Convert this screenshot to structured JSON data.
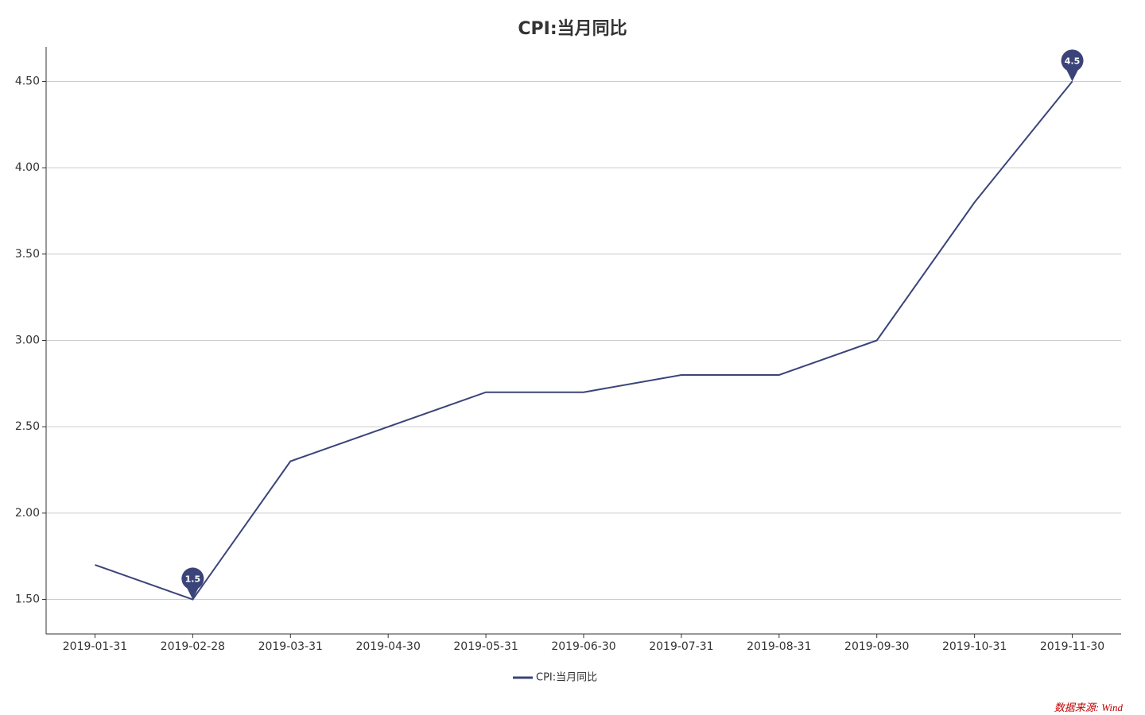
{
  "chart_data": {
    "type": "line",
    "title": "CPI:当月同比",
    "categories": [
      "2019-01-31",
      "2019-02-28",
      "2019-03-31",
      "2019-04-30",
      "2019-05-31",
      "2019-06-30",
      "2019-07-31",
      "2019-08-31",
      "2019-09-30",
      "2019-10-31",
      "2019-11-30"
    ],
    "series": [
      {
        "name": "CPI:当月同比",
        "color": "#3b4479",
        "values": [
          1.7,
          1.5,
          2.3,
          2.5,
          2.7,
          2.7,
          2.8,
          2.8,
          3.0,
          3.8,
          4.5
        ]
      }
    ],
    "ylim": [
      1.3,
      4.7
    ],
    "yticks": [
      {
        "value": 1.5,
        "label": "1.50"
      },
      {
        "value": 2,
        "label": "2.00"
      },
      {
        "value": 2.5,
        "label": "2.50"
      },
      {
        "value": 3,
        "label": "3.00"
      },
      {
        "value": 3.5,
        "label": "3.50"
      },
      {
        "value": 4,
        "label": "4.00"
      },
      {
        "value": 4.5,
        "label": "4.50"
      }
    ],
    "grid": true,
    "mark_points": [
      "min",
      "max"
    ],
    "legend": "bottom",
    "source": "数据来源: Wind"
  }
}
